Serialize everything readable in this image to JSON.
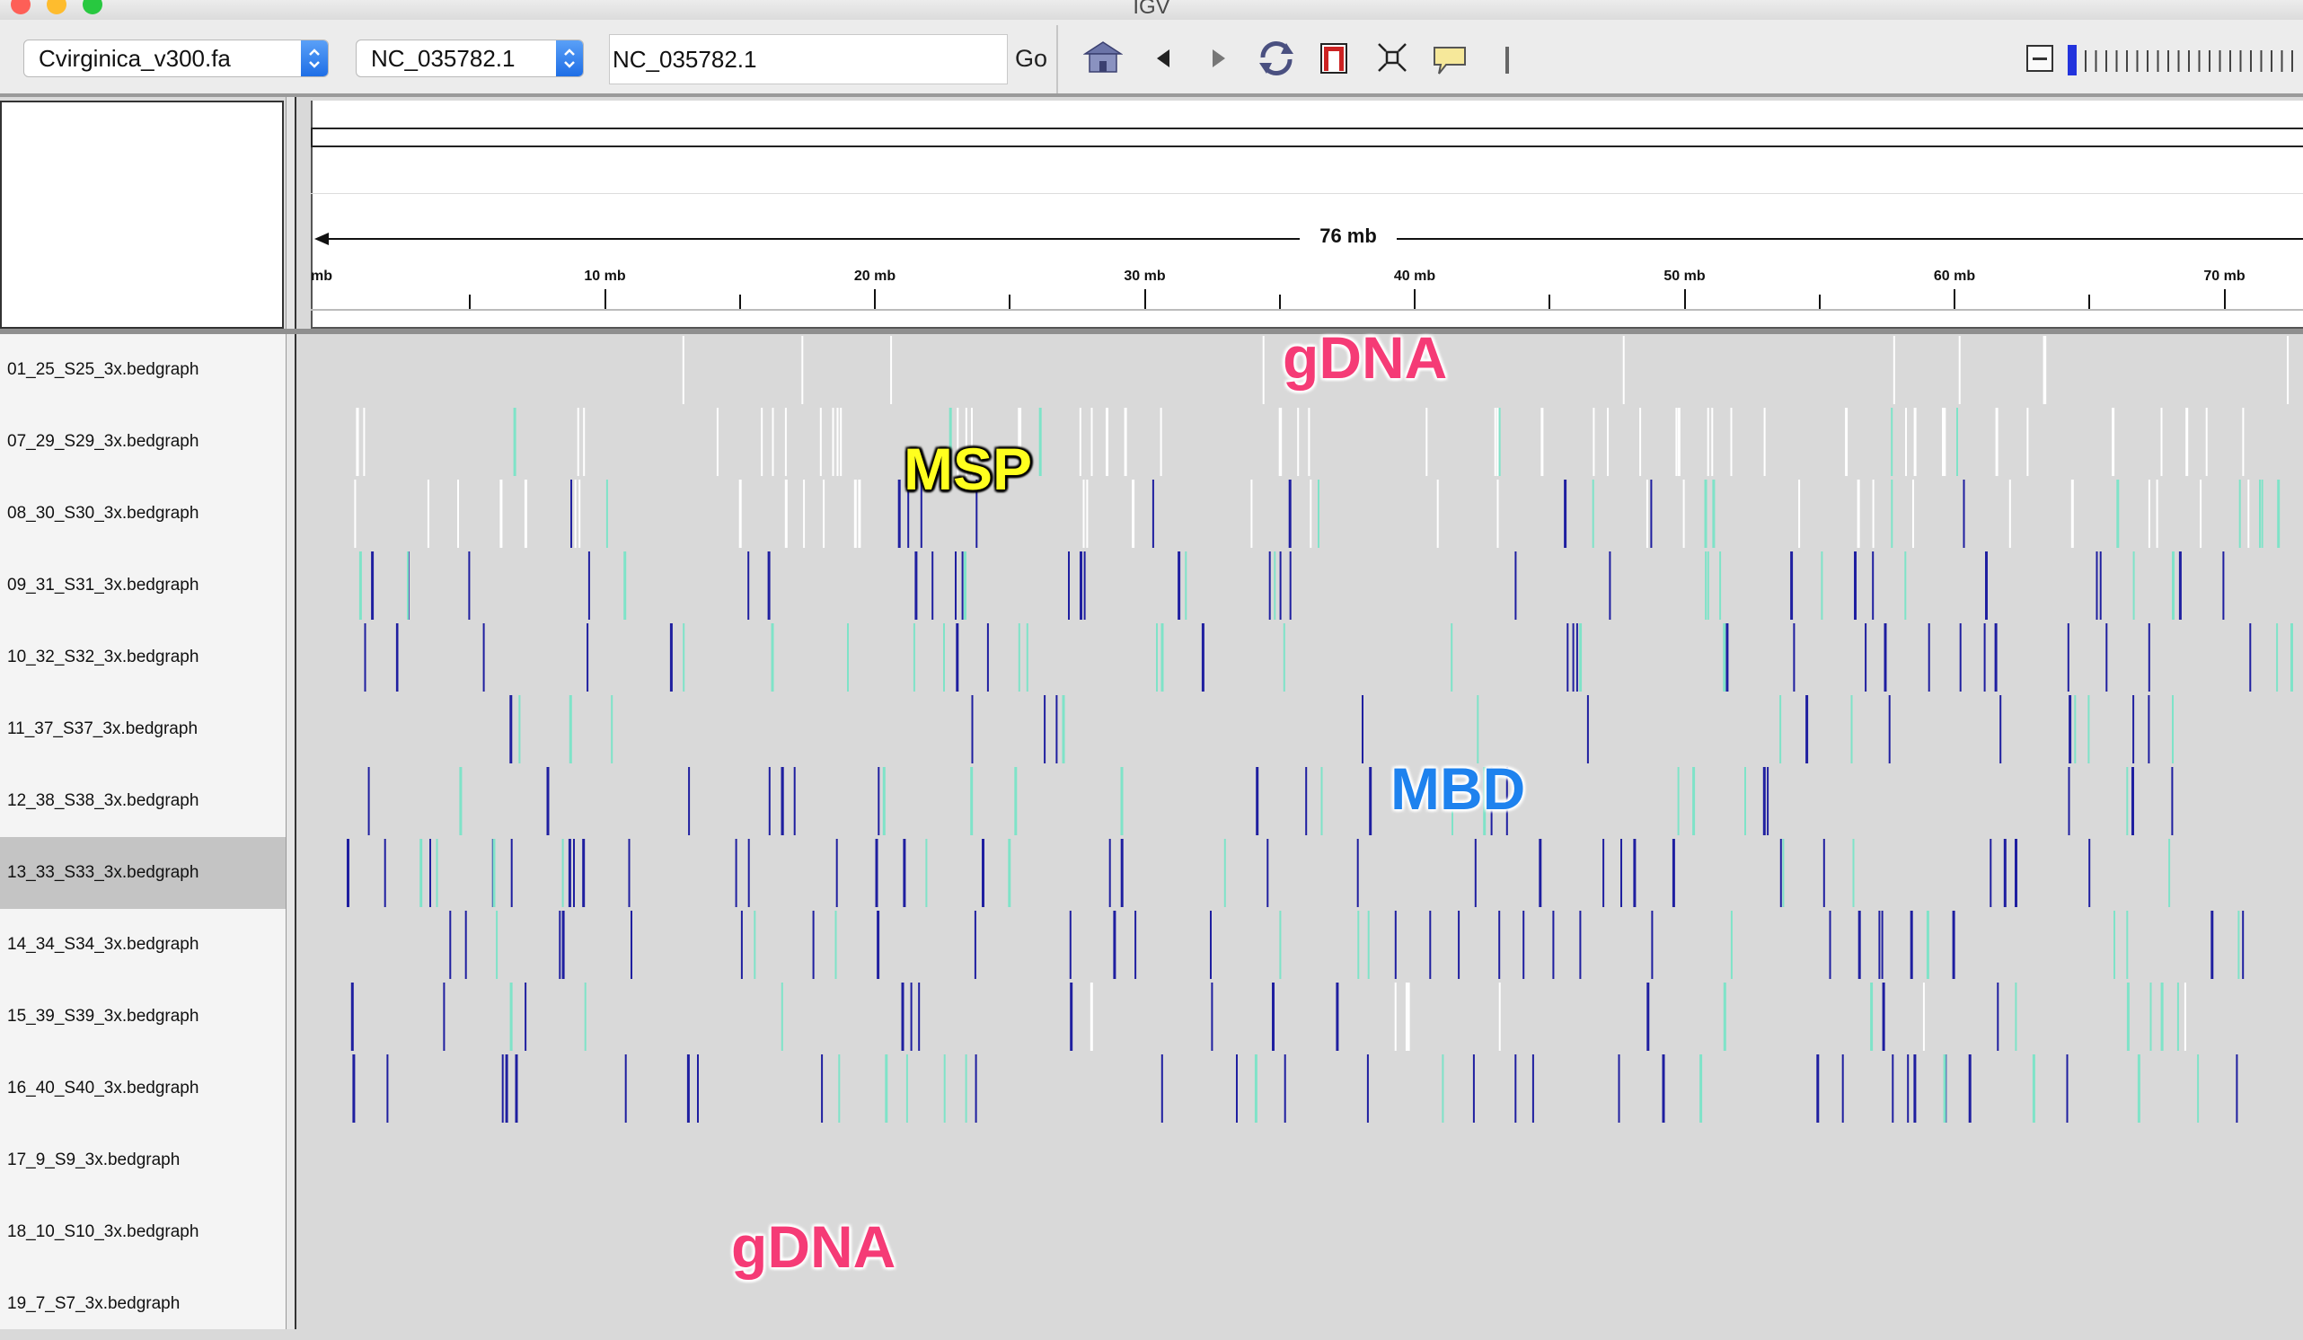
{
  "window": {
    "title": "IGV",
    "traffic_colors": [
      "#fe5f57",
      "#febc2e",
      "#28c840"
    ]
  },
  "toolbar": {
    "genome_select": "Cvirginica_v300.fa",
    "chromosome_select": "NC_035782.1",
    "locus_input": "NC_035782.1",
    "go_label": "Go",
    "icons": [
      "home-icon",
      "back-arrow-icon",
      "forward-arrow-icon",
      "refresh-icon",
      "region-of-interest-icon",
      "resize-tracks-icon",
      "popup-info-icon",
      "divider-mark"
    ]
  },
  "ruler": {
    "span_label": "76 mb",
    "start_label": "mb",
    "ticks": [
      {
        "mb": 10,
        "label": "10 mb"
      },
      {
        "mb": 20,
        "label": "20 mb"
      },
      {
        "mb": 30,
        "label": "30 mb"
      },
      {
        "mb": 40,
        "label": "40 mb"
      },
      {
        "mb": 50,
        "label": "50 mb"
      },
      {
        "mb": 60,
        "label": "60 mb"
      },
      {
        "mb": 70,
        "label": "70 mb"
      }
    ]
  },
  "tracks": [
    {
      "name": "01_25_S25_3x.bedgraph",
      "selected": false
    },
    {
      "name": "07_29_S29_3x.bedgraph",
      "selected": false
    },
    {
      "name": "08_30_S30_3x.bedgraph",
      "selected": false
    },
    {
      "name": "09_31_S31_3x.bedgraph",
      "selected": false
    },
    {
      "name": "10_32_S32_3x.bedgraph",
      "selected": false
    },
    {
      "name": "11_37_S37_3x.bedgraph",
      "selected": false
    },
    {
      "name": "12_38_S38_3x.bedgraph",
      "selected": false
    },
    {
      "name": "13_33_S33_3x.bedgraph",
      "selected": true
    },
    {
      "name": "14_34_S34_3x.bedgraph",
      "selected": false
    },
    {
      "name": "15_39_S39_3x.bedgraph",
      "selected": false
    },
    {
      "name": "16_40_S40_3x.bedgraph",
      "selected": false
    },
    {
      "name": "17_9_S9_3x.bedgraph",
      "selected": false
    },
    {
      "name": "18_10_S10_3x.bedgraph",
      "selected": false
    },
    {
      "name": "19_7_S7_3x.bedgraph",
      "selected": false
    }
  ],
  "annotations": {
    "gdna_top": "gDNA",
    "msp": "MSP",
    "mbd": "MBD",
    "gdna_bottom": "gDNA"
  },
  "colors": {
    "mark_white": "#ffffff",
    "mark_dark_blue": "#1f1fa0",
    "mark_teal": "#7fe3c8",
    "track_background": "#d9d9d9",
    "gdna_annotation": "#f53b76",
    "msp_annotation": "#ffff1e",
    "mbd_annotation": "#1e82ee"
  }
}
